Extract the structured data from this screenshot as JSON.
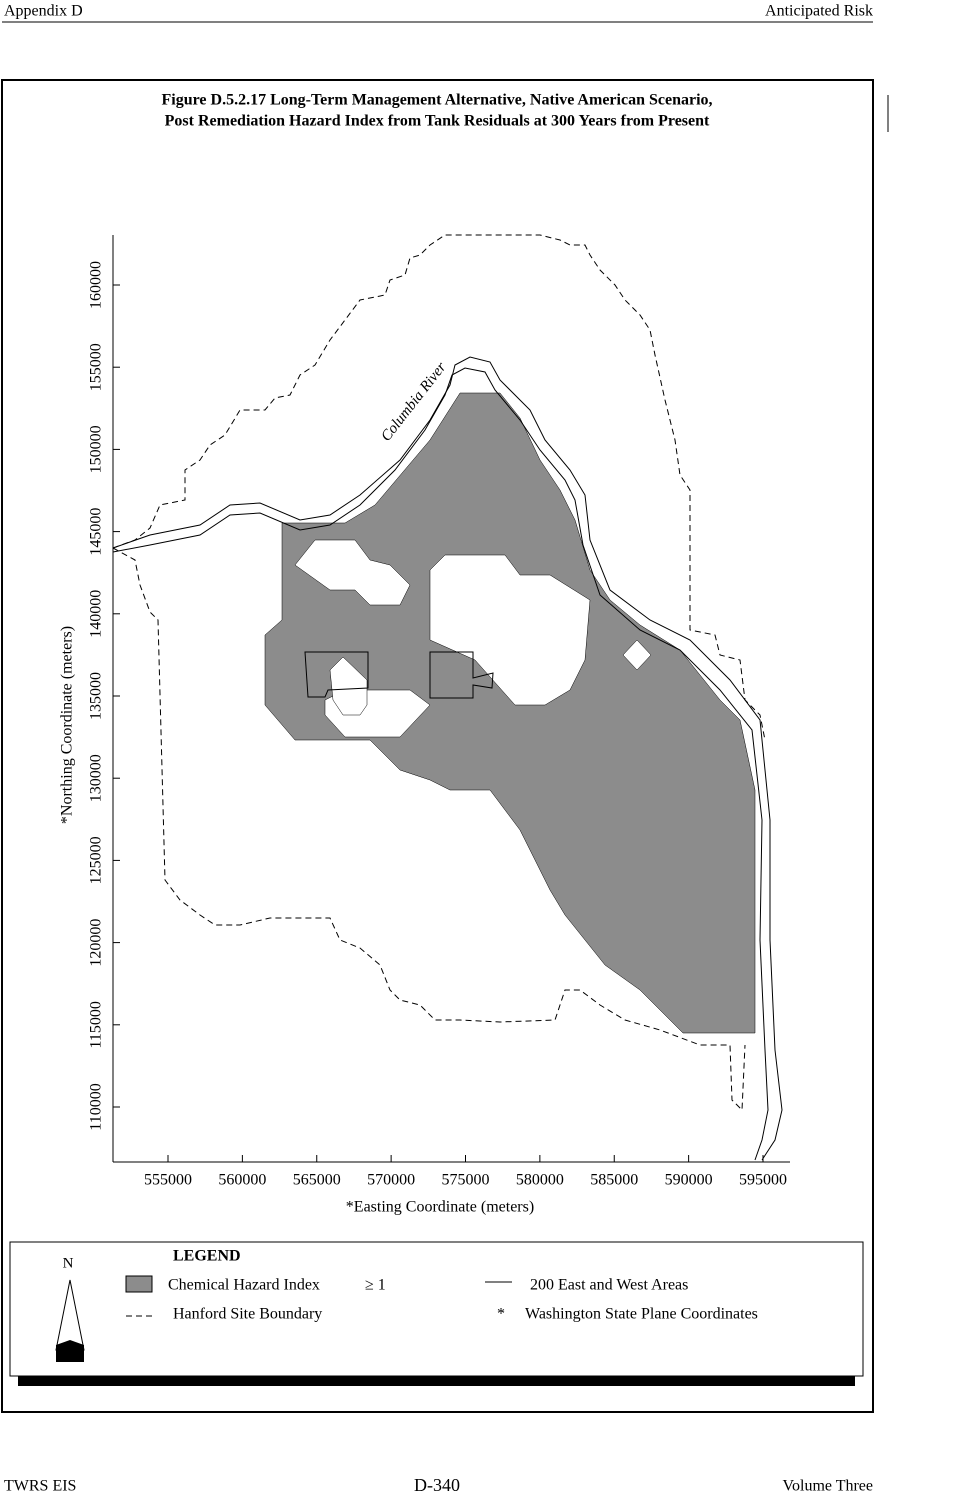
{
  "header": {
    "left": "Appendix D",
    "right": "Anticipated Risk"
  },
  "figure": {
    "title_line1": "Figure D.5.2.17  Long-Term Management Alternative, Native American Scenario,",
    "title_line2": "Post Remediation Hazard Index from Tank Residuals at 300 Years from Present",
    "river_label": "Columbia River",
    "x_label": "*Easting Coordinate (meters)",
    "y_label": "*Northing Coordinate (meters)",
    "xticks": [
      555000,
      560000,
      565000,
      570000,
      575000,
      580000,
      585000,
      590000,
      595000
    ],
    "yticks": [
      110000,
      115000,
      120000,
      125000,
      130000,
      135000,
      140000,
      145000,
      150000,
      155000,
      160000
    ]
  },
  "legend": {
    "north": "N",
    "title": "LEGEND",
    "hazard": "Chemical Hazard Index",
    "hazard_threshold": "≥ 1",
    "areas": "200 East and West Areas",
    "boundary": "Hanford Site Boundary",
    "star": "*",
    "coords": "Washington State Plane Coordinates"
  },
  "footer": {
    "left": "TWRS EIS",
    "center": "D-340",
    "right": "Volume Three"
  }
}
